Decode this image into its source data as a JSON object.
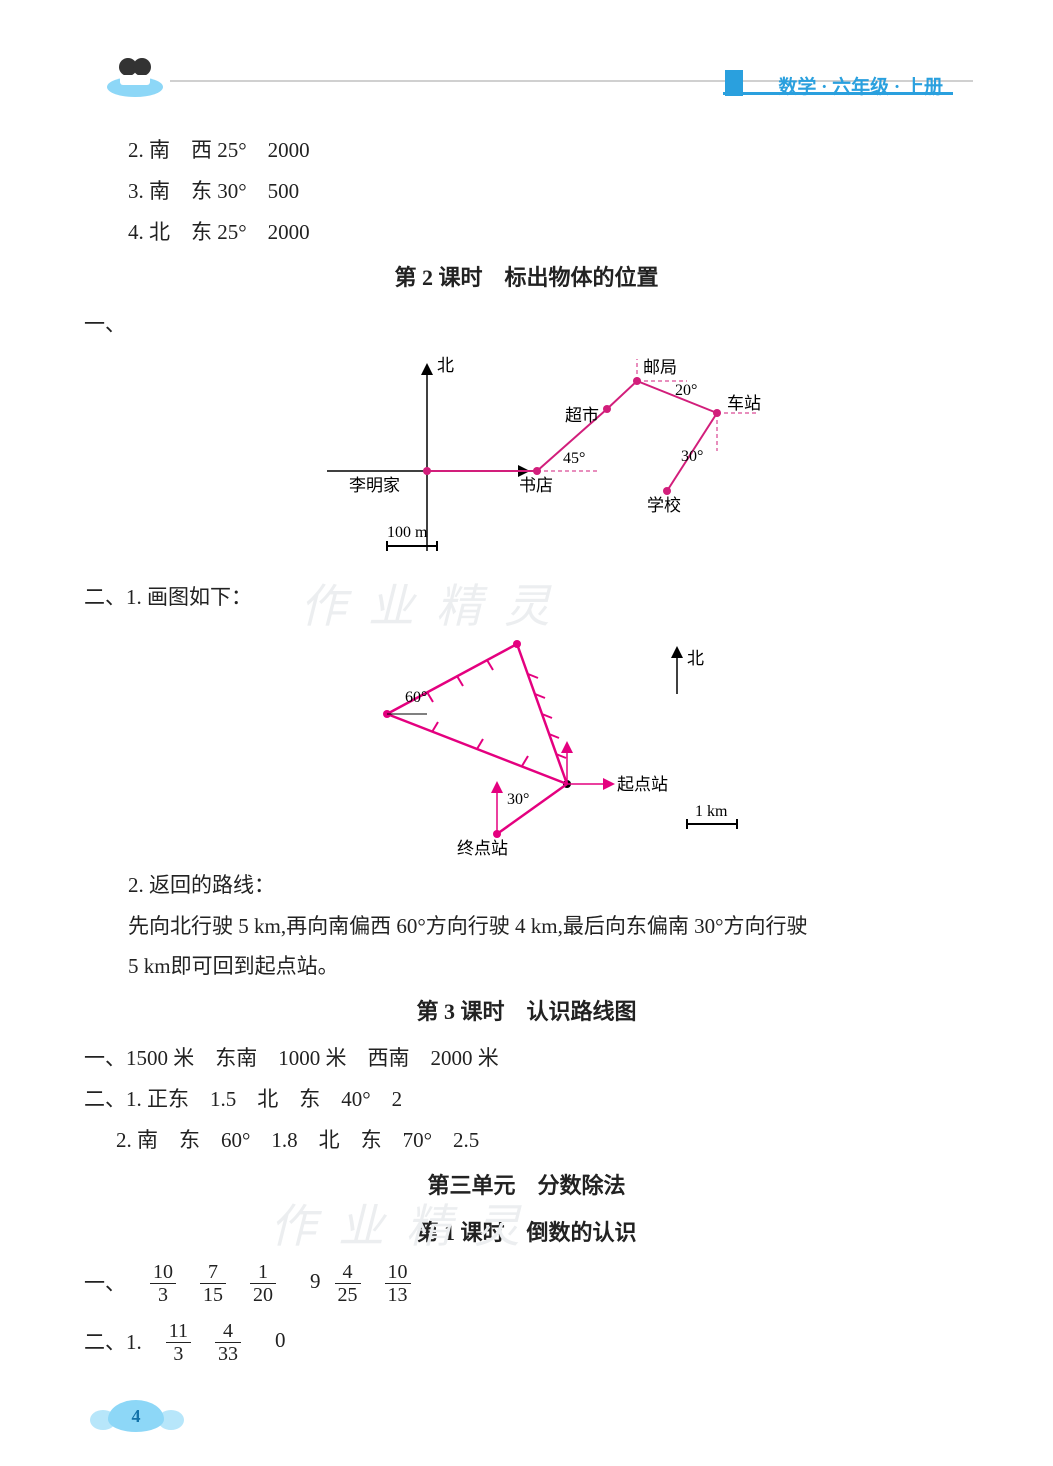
{
  "header": {
    "title": "数学 · 六年级 · 上册"
  },
  "top_answers": {
    "a2": "2. 南　西 25°　2000",
    "a3": "3. 南　东 30°　500",
    "a4": "4. 北　东 25°　2000"
  },
  "lesson2": {
    "title": "第 2 课时　标出物体的位置",
    "q1_label": "一、",
    "diagram1": {
      "type": "diagram",
      "scale_label": "100 m",
      "labels": {
        "north": "北",
        "origin": "李明家",
        "bookstore": "书店",
        "supermarket": "超市",
        "postoffice": "邮局",
        "station": "车站",
        "school": "学校",
        "angle_book": "45°",
        "angle_station": "20°",
        "angle_school": "30°"
      },
      "colors": {
        "axis": "#000000",
        "path": "#d21e7b",
        "dash": "#d21e7b",
        "text": "#222222"
      }
    },
    "q2_label": "二、1. 画图如下：",
    "diagram2": {
      "type": "diagram",
      "scale_label": "1 km",
      "labels": {
        "north": "北",
        "start": "起点站",
        "end": "终点站",
        "angle_top": "60°",
        "angle_bottom": "30°"
      },
      "colors": {
        "path": "#e4007f",
        "axis": "#000000",
        "text": "#222222"
      }
    },
    "q2_2a": "2. 返回的路线：",
    "q2_2b": "先向北行驶 5 km,再向南偏西 60°方向行驶 4 km,最后向东偏南 30°方向行驶",
    "q2_2c": "5 km即可回到起点站。"
  },
  "lesson3": {
    "title": "第 3 课时　认识路线图",
    "r1": "一、1500 米　东南　1000 米　西南　2000 米",
    "r2": "二、1. 正东　1.5　北　东　40°　2",
    "r3": "2. 南　东　60°　1.8　北　东　70°　2.5"
  },
  "unit3": {
    "title": "第三单元　分数除法",
    "lesson1_title": "第 1 课时　倒数的认识",
    "row1_prefix": "一、",
    "row1_fracs": [
      {
        "n": "10",
        "d": "3"
      },
      {
        "n": "7",
        "d": "15"
      },
      {
        "n": "1",
        "d": "20"
      },
      "9",
      {
        "n": "4",
        "d": "25"
      },
      {
        "n": "10",
        "d": "13"
      }
    ],
    "row2_prefix": "二、1.",
    "row2_fracs": [
      {
        "n": "11",
        "d": "3"
      },
      {
        "n": "4",
        "d": "33"
      },
      "0"
    ]
  },
  "watermarks": {
    "w1": "作业精灵",
    "w2": "作业精灵"
  },
  "page_number": "4"
}
